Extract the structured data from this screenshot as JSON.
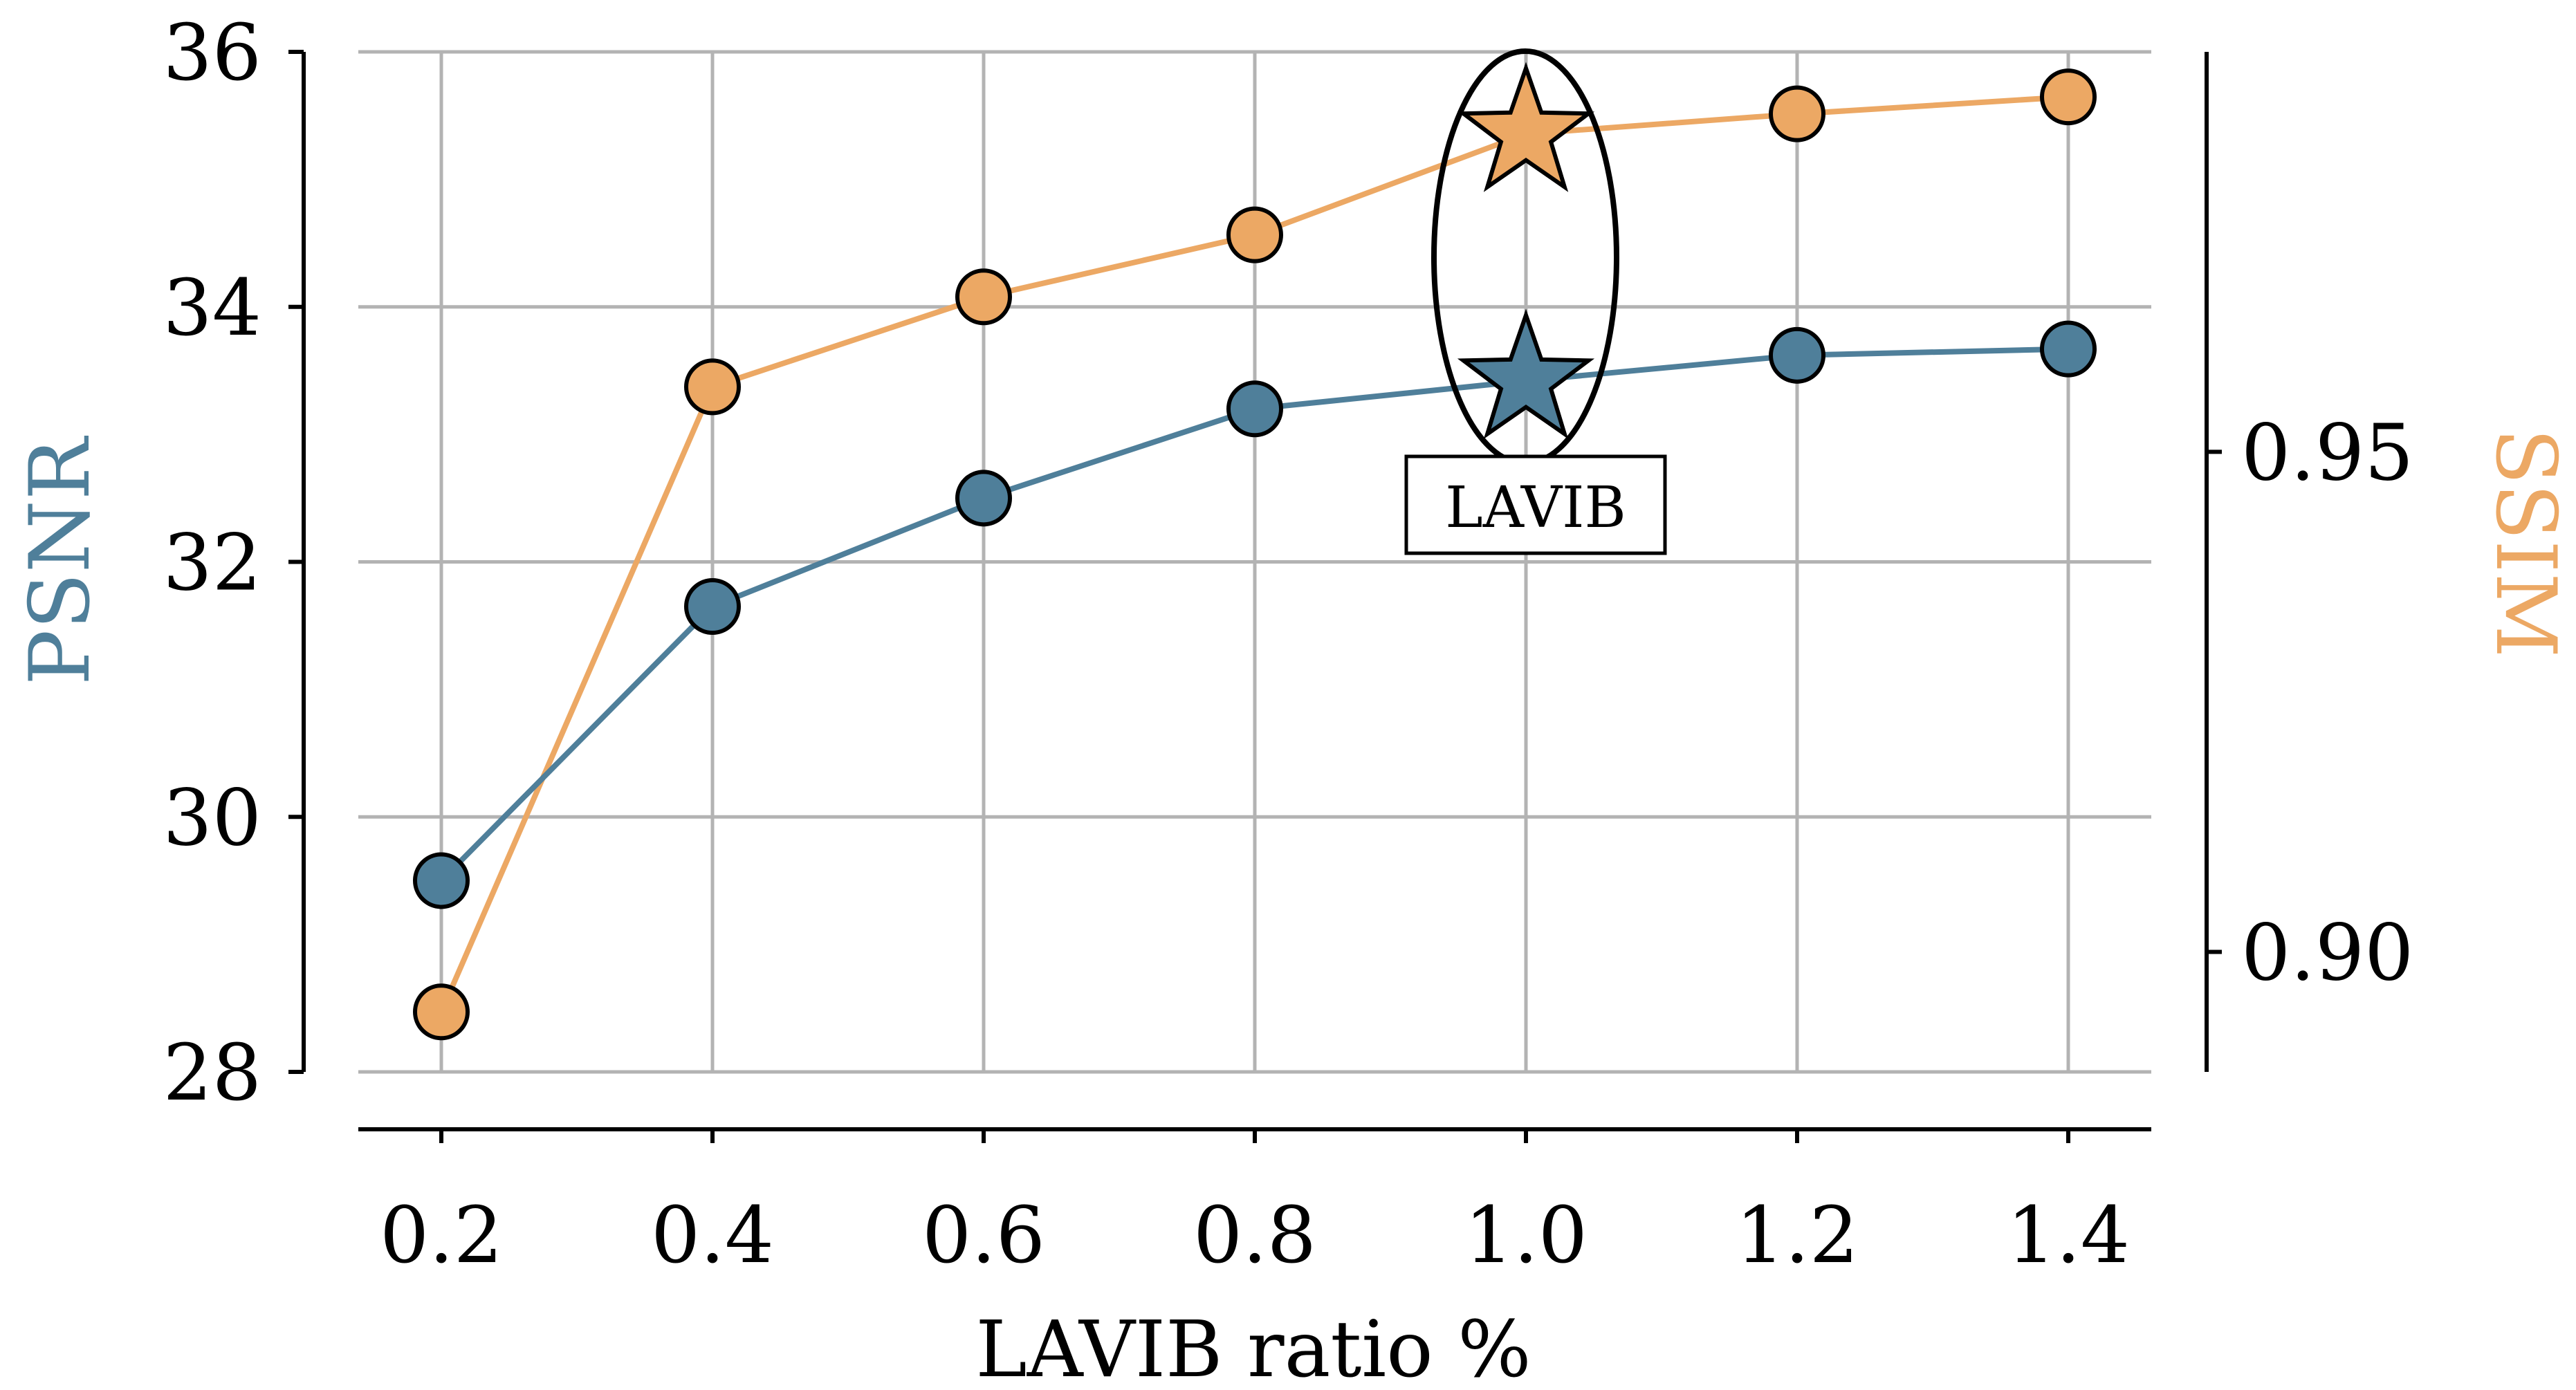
{
  "chart_data": {
    "type": "line",
    "title": "",
    "xlabel": "LAVIB ratio %",
    "x": [
      0.2,
      0.4,
      0.6,
      0.8,
      1.0,
      1.2,
      1.4
    ],
    "x_tick_labels": [
      "0.2",
      "0.4",
      "0.6",
      "0.8",
      "1.0",
      "1.2",
      "1.4"
    ],
    "grid": true,
    "highlight": {
      "x": 1.0,
      "label": "LAVIB",
      "marker": "star"
    },
    "left_axis": {
      "label": "PSNR",
      "color": "#4f7f9a",
      "ylim": [
        28,
        36
      ],
      "ticks": [
        28,
        30,
        32,
        34,
        36
      ],
      "tick_labels": [
        "28",
        "30",
        "32",
        "34",
        "36"
      ]
    },
    "right_axis": {
      "label": "SSIM",
      "color": "#eca864",
      "ylim": [
        0.888,
        0.99
      ],
      "ticks": [
        0.9,
        0.95
      ],
      "tick_labels": [
        "0.90",
        "0.95"
      ]
    },
    "series": [
      {
        "name": "PSNR",
        "axis": "left",
        "color": "#4f7f9a",
        "values": [
          29.5,
          31.65,
          32.5,
          33.2,
          33.42,
          33.62,
          33.67
        ]
      },
      {
        "name": "SSIM",
        "axis": "right",
        "color": "#eca864",
        "values": [
          0.894,
          0.9565,
          0.9655,
          0.9717,
          0.9818,
          0.9838,
          0.9855
        ]
      }
    ]
  }
}
